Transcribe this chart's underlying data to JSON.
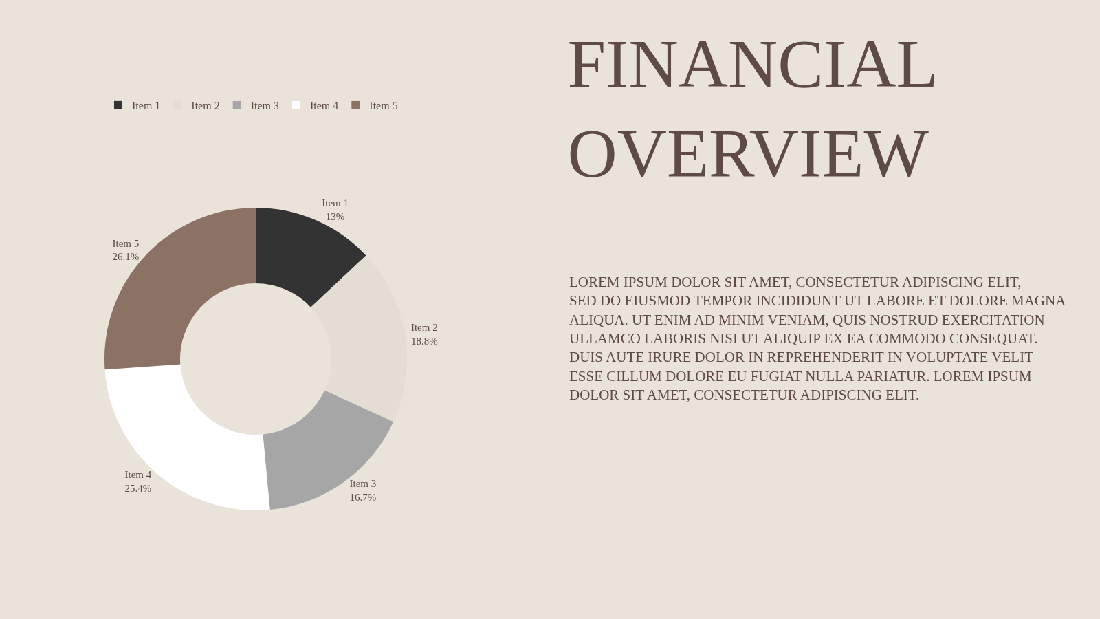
{
  "chart_data": {
    "type": "donut",
    "title": "FINANCIAL\nOVERVIEW",
    "categories": [
      "Item 1",
      "Item 2",
      "Item 3",
      "Item 4",
      "Item 5"
    ],
    "values": [
      13,
      18.8,
      16.7,
      25.4,
      26.1
    ],
    "value_labels": [
      "13%",
      "18.8%",
      "16.7%",
      "25.4%",
      "26.1%"
    ],
    "colors": [
      "#333333",
      "#e3ddd4",
      "#a6a6a6",
      "#ffffff",
      "#8b7265"
    ],
    "legend": "top",
    "annotations": [
      "LOREM IPSUM DOLOR SIT AMET, CONSECTETUR ADIPISCING ELIT, SED DO EIUSMOD TEMPOR INCIDIDUNT UT LABORE ET DOLORE MAGNA ALIQUA. UT ENIM AD MINIM VENIAM, QUIS NOSTRUD EXERCITATION ULLAMCO LABORIS NISI UT ALIQUIP EX EA COMMODO CONSEQUAT. DUIS AUTE IRURE DOLOR IN REPREHENDERIT IN VOLUPTATE VELIT ESSE CILLUM DOLORE EU FUGIAT NULLA PARIATUR. LOREM IPSUM DOLOR SIT AMET, CONSECTETUR ADIPISCING ELIT."
    ]
  }
}
